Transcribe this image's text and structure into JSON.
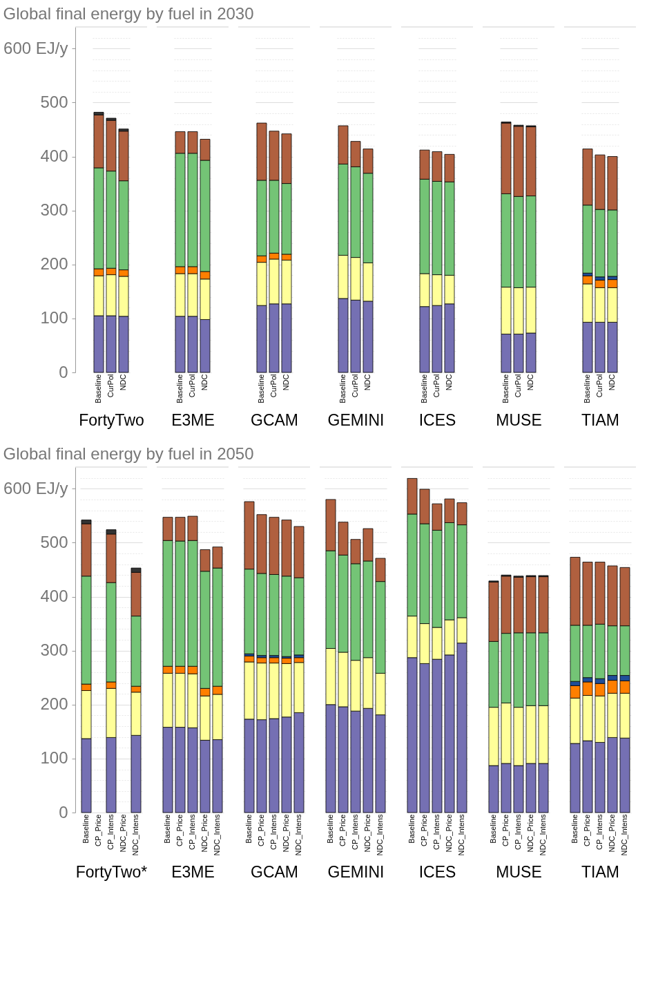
{
  "chart_data": [
    {
      "type": "bar",
      "stacked": true,
      "grid": true,
      "title": "Global final energy by fuel in 2030",
      "xlabel": "FortyTwo",
      "categories": [
        "Baseline",
        "CurPol",
        "NDC"
      ],
      "ylim": [
        0,
        640
      ],
      "yticks": [
        0,
        {
          "value": 20,
          "label": null
        },
        {
          "value": 40,
          "label": null
        },
        {
          "value": 60,
          "label": null
        },
        {
          "value": 80,
          "label": null
        },
        100,
        {
          "value": 120,
          "label": null
        },
        {
          "value": 140,
          "label": null
        },
        {
          "value": 160,
          "label": null
        },
        {
          "value": 180,
          "label": null
        },
        200,
        {
          "value": 220,
          "label": null
        },
        {
          "value": 240,
          "label": null
        },
        {
          "value": 260,
          "label": null
        },
        {
          "value": 280,
          "label": null
        },
        300,
        {
          "value": 320,
          "label": null
        },
        {
          "value": 340,
          "label": null
        },
        {
          "value": 360,
          "label": null
        },
        {
          "value": 380,
          "label": null
        },
        400,
        {
          "value": 420,
          "label": null
        },
        {
          "value": 440,
          "label": null
        },
        {
          "value": 460,
          "label": null
        },
        {
          "value": 480,
          "label": null
        },
        500,
        {
          "value": 520,
          "label": null
        },
        {
          "value": 540,
          "label": null
        },
        {
          "value": 560,
          "label": null
        },
        {
          "value": 580,
          "label": null
        },
        {
          "value": 600,
          "label": "600 EJ/y"
        },
        {
          "value": 620,
          "label": null
        }
      ],
      "series": [
        {
          "color": "#7570b3",
          "values": [
            105,
            105,
            104
          ]
        },
        {
          "color": "#ffff99",
          "values": [
            74,
            76,
            74
          ]
        },
        {
          "color": "#ff7f00",
          "values": [
            13,
            12,
            12
          ]
        },
        {
          "color": "#1f4e99",
          "values": [
            null,
            null,
            null
          ]
        },
        {
          "color": "#74c476",
          "values": [
            187,
            180,
            165
          ]
        },
        {
          "color": "#b0603f",
          "values": [
            98,
            94,
            92
          ]
        },
        {
          "color": "#333333",
          "values": [
            5,
            4,
            4
          ]
        }
      ]
    },
    {
      "type": "bar",
      "stacked": true,
      "grid": true,
      "tick_labels": "x",
      "xlabel": "E3ME",
      "categories": [
        "Baseline",
        "CurPol",
        "NDC"
      ],
      "ylim": [
        0,
        640
      ],
      "series": [
        {
          "color": "#7570b3",
          "values": [
            104,
            104,
            98
          ]
        },
        {
          "color": "#ffff99",
          "values": [
            79,
            79,
            75
          ]
        },
        {
          "color": "#ff7f00",
          "values": [
            13,
            13,
            14
          ]
        },
        {
          "color": "#1f4e99",
          "values": [
            null,
            null,
            null
          ]
        },
        {
          "color": "#74c476",
          "values": [
            210,
            210,
            206
          ]
        },
        {
          "color": "#b0603f",
          "values": [
            40,
            40,
            39
          ]
        },
        {
          "color": "#333333",
          "values": [
            null,
            null,
            null
          ]
        }
      ]
    },
    {
      "type": "bar",
      "stacked": true,
      "grid": true,
      "tick_labels": "x",
      "xlabel": "GCAM",
      "categories": [
        "Baseline",
        "CurPol",
        "NDC"
      ],
      "ylim": [
        0,
        640
      ],
      "series": [
        {
          "color": "#7570b3",
          "values": [
            124,
            127,
            127
          ]
        },
        {
          "color": "#ffff99",
          "values": [
            80,
            83,
            81
          ]
        },
        {
          "color": "#ff7f00",
          "values": [
            12,
            11,
            11
          ]
        },
        {
          "color": "#1f4e99",
          "values": [
            null,
            null,
            null
          ]
        },
        {
          "color": "#74c476",
          "values": [
            140,
            135,
            131
          ]
        },
        {
          "color": "#b0603f",
          "values": [
            106,
            91,
            92
          ]
        },
        {
          "color": "#333333",
          "values": [
            null,
            null,
            null
          ]
        }
      ]
    },
    {
      "type": "bar",
      "stacked": true,
      "grid": true,
      "tick_labels": "x",
      "xlabel": "GEMINI",
      "categories": [
        "Baseline",
        "CurPol",
        "NDC"
      ],
      "ylim": [
        0,
        640
      ],
      "series": [
        {
          "color": "#7570b3",
          "values": [
            137,
            134,
            132
          ]
        },
        {
          "color": "#ffff99",
          "values": [
            80,
            79,
            71
          ]
        },
        {
          "color": "#ff7f00",
          "values": [
            null,
            null,
            null
          ]
        },
        {
          "color": "#1f4e99",
          "values": [
            null,
            null,
            null
          ]
        },
        {
          "color": "#74c476",
          "values": [
            169,
            168,
            166
          ]
        },
        {
          "color": "#b0603f",
          "values": [
            71,
            47,
            45
          ]
        },
        {
          "color": "#333333",
          "values": [
            null,
            null,
            null
          ]
        }
      ]
    },
    {
      "type": "bar",
      "stacked": true,
      "grid": true,
      "tick_labels": "x",
      "xlabel": "ICES",
      "categories": [
        "Baseline",
        "CurPol",
        "NDC"
      ],
      "ylim": [
        0,
        640
      ],
      "series": [
        {
          "color": "#7570b3",
          "values": [
            122,
            124,
            127
          ]
        },
        {
          "color": "#ffff99",
          "values": [
            61,
            57,
            53
          ]
        },
        {
          "color": "#ff7f00",
          "values": [
            null,
            null,
            null
          ]
        },
        {
          "color": "#1f4e99",
          "values": [
            null,
            null,
            null
          ]
        },
        {
          "color": "#74c476",
          "values": [
            175,
            173,
            173
          ]
        },
        {
          "color": "#b0603f",
          "values": [
            54,
            55,
            51
          ]
        },
        {
          "color": "#333333",
          "values": [
            null,
            null,
            null
          ]
        }
      ]
    },
    {
      "type": "bar",
      "stacked": true,
      "grid": true,
      "tick_labels": "x",
      "xlabel": "MUSE",
      "categories": [
        "Baseline",
        "CurPol",
        "NDC"
      ],
      "ylim": [
        0,
        640
      ],
      "series": [
        {
          "color": "#7570b3",
          "values": [
            71,
            71,
            73
          ]
        },
        {
          "color": "#ffff99",
          "values": [
            87,
            86,
            85
          ]
        },
        {
          "color": "#ff7f00",
          "values": [
            null,
            null,
            null
          ]
        },
        {
          "color": "#1f4e99",
          "values": [
            null,
            null,
            null
          ]
        },
        {
          "color": "#74c476",
          "values": [
            173,
            169,
            169
          ]
        },
        {
          "color": "#b0603f",
          "values": [
            131,
            130,
            128
          ]
        },
        {
          "color": "#333333",
          "values": [
            2,
            2,
            2
          ]
        }
      ]
    },
    {
      "type": "bar",
      "stacked": true,
      "grid": true,
      "tick_labels": "x",
      "xlabel": "TIAM",
      "categories": [
        "Baseline",
        "CurPol",
        "NDC"
      ],
      "ylim": [
        0,
        640
      ],
      "series": [
        {
          "color": "#7570b3",
          "values": [
            93,
            93,
            93
          ]
        },
        {
          "color": "#ffff99",
          "values": [
            71,
            64,
            64
          ]
        },
        {
          "color": "#ff7f00",
          "values": [
            15,
            14,
            15
          ]
        },
        {
          "color": "#1f4e99",
          "values": [
            5,
            6,
            6
          ]
        },
        {
          "color": "#74c476",
          "values": [
            126,
            125,
            123
          ]
        },
        {
          "color": "#b0603f",
          "values": [
            104,
            101,
            99
          ]
        },
        {
          "color": "#333333",
          "values": [
            null,
            null,
            null
          ]
        }
      ]
    },
    {
      "type": "bar",
      "stacked": true,
      "grid": true,
      "title": "Global final energy by fuel in 2050",
      "xlabel": "FortyTwo*",
      "categories": [
        "Baseline",
        "CP_Price",
        "CP_Intens",
        "NDC_Price",
        "NDC_Intens"
      ],
      "ylim": [
        0,
        640
      ],
      "yticks": [
        0,
        {
          "value": 20,
          "label": null
        },
        {
          "value": 40,
          "label": null
        },
        {
          "value": 60,
          "label": null
        },
        {
          "value": 80,
          "label": null
        },
        100,
        {
          "value": 120,
          "label": null
        },
        {
          "value": 140,
          "label": null
        },
        {
          "value": 160,
          "label": null
        },
        {
          "value": 180,
          "label": null
        },
        200,
        {
          "value": 220,
          "label": null
        },
        {
          "value": 240,
          "label": null
        },
        {
          "value": 260,
          "label": null
        },
        {
          "value": 280,
          "label": null
        },
        300,
        {
          "value": 320,
          "label": null
        },
        {
          "value": 340,
          "label": null
        },
        {
          "value": 360,
          "label": null
        },
        {
          "value": 380,
          "label": null
        },
        400,
        {
          "value": 420,
          "label": null
        },
        {
          "value": 440,
          "label": null
        },
        {
          "value": 460,
          "label": null
        },
        {
          "value": 480,
          "label": null
        },
        500,
        {
          "value": 520,
          "label": null
        },
        {
          "value": 540,
          "label": null
        },
        {
          "value": 560,
          "label": null
        },
        {
          "value": 580,
          "label": null
        },
        {
          "value": 600,
          "label": "600 EJ/y"
        },
        {
          "value": 620,
          "label": null
        }
      ],
      "series": [
        {
          "color": "#7570b3",
          "values": [
            137,
            null,
            139,
            null,
            143
          ]
        },
        {
          "color": "#ffff99",
          "values": [
            89,
            null,
            91,
            null,
            80
          ]
        },
        {
          "color": "#ff7f00",
          "values": [
            12,
            null,
            12,
            null,
            11
          ]
        },
        {
          "color": "#1f4e99",
          "values": [
            null,
            null,
            null,
            null,
            null
          ]
        },
        {
          "color": "#74c476",
          "values": [
            200,
            null,
            184,
            null,
            130
          ]
        },
        {
          "color": "#b0603f",
          "values": [
            97,
            null,
            90,
            null,
            81
          ]
        },
        {
          "color": "#333333",
          "values": [
            7,
            null,
            8,
            null,
            8
          ]
        }
      ]
    },
    {
      "type": "bar",
      "stacked": true,
      "grid": true,
      "tick_labels": "x",
      "xlabel": "E3ME",
      "categories": [
        "Baseline",
        "CP_Price",
        "CP_Intens",
        "NDC_Price",
        "NDC_Intens"
      ],
      "ylim": [
        0,
        640
      ],
      "series": [
        {
          "color": "#7570b3",
          "values": [
            158,
            158,
            157,
            134,
            135
          ]
        },
        {
          "color": "#ffff99",
          "values": [
            100,
            100,
            100,
            82,
            84
          ]
        },
        {
          "color": "#ff7f00",
          "values": [
            13,
            13,
            14,
            14,
            15
          ]
        },
        {
          "color": "#1f4e99",
          "values": [
            null,
            null,
            null,
            null,
            null
          ]
        },
        {
          "color": "#74c476",
          "values": [
            233,
            232,
            233,
            217,
            219
          ]
        },
        {
          "color": "#b0603f",
          "values": [
            43,
            44,
            45,
            40,
            39
          ]
        },
        {
          "color": "#333333",
          "values": [
            null,
            null,
            null,
            null,
            null
          ]
        }
      ]
    },
    {
      "type": "bar",
      "stacked": true,
      "grid": true,
      "tick_labels": "x",
      "xlabel": "GCAM",
      "categories": [
        "Baseline",
        "CP_Price",
        "CP_Intens",
        "NDC_Price",
        "NDC_Intens"
      ],
      "ylim": [
        0,
        640
      ],
      "series": [
        {
          "color": "#7570b3",
          "values": [
            173,
            172,
            174,
            177,
            185
          ]
        },
        {
          "color": "#ffff99",
          "values": [
            106,
            105,
            103,
            99,
            93
          ]
        },
        {
          "color": "#ff7f00",
          "values": [
            11,
            10,
            10,
            10,
            9
          ]
        },
        {
          "color": "#1f4e99",
          "values": [
            4,
            4,
            4,
            3,
            5
          ]
        },
        {
          "color": "#74c476",
          "values": [
            157,
            152,
            150,
            149,
            143
          ]
        },
        {
          "color": "#b0603f",
          "values": [
            125,
            109,
            106,
            104,
            95
          ]
        },
        {
          "color": "#333333",
          "values": [
            null,
            null,
            null,
            null,
            null
          ]
        }
      ]
    },
    {
      "type": "bar",
      "stacked": true,
      "grid": true,
      "tick_labels": "x",
      "xlabel": "GEMINI",
      "categories": [
        "Baseline",
        "CP_Price",
        "CP_Intens",
        "NDC_Price",
        "NDC_Intens"
      ],
      "ylim": [
        0,
        640
      ],
      "series": [
        {
          "color": "#7570b3",
          "values": [
            200,
            196,
            188,
            193,
            181
          ]
        },
        {
          "color": "#ffff99",
          "values": [
            104,
            101,
            94,
            94,
            77
          ]
        },
        {
          "color": "#ff7f00",
          "values": [
            null,
            null,
            null,
            null,
            null
          ]
        },
        {
          "color": "#1f4e99",
          "values": [
            null,
            null,
            null,
            null,
            null
          ]
        },
        {
          "color": "#74c476",
          "values": [
            181,
            180,
            179,
            179,
            170
          ]
        },
        {
          "color": "#b0603f",
          "values": [
            95,
            61,
            45,
            60,
            43
          ]
        },
        {
          "color": "#333333",
          "values": [
            null,
            null,
            null,
            null,
            null
          ]
        }
      ]
    },
    {
      "type": "bar",
      "stacked": true,
      "grid": true,
      "tick_labels": "x",
      "xlabel": "ICES",
      "categories": [
        "Baseline",
        "CP_Price",
        "CP_Intens",
        "NDC_Price",
        "NDC_Intens"
      ],
      "ylim": [
        0,
        640
      ],
      "series": [
        {
          "color": "#7570b3",
          "values": [
            287,
            276,
            284,
            292,
            314
          ]
        },
        {
          "color": "#ffff99",
          "values": [
            77,
            74,
            59,
            65,
            47
          ]
        },
        {
          "color": "#ff7f00",
          "values": [
            null,
            null,
            null,
            null,
            null
          ]
        },
        {
          "color": "#1f4e99",
          "values": [
            null,
            null,
            null,
            null,
            null
          ]
        },
        {
          "color": "#74c476",
          "values": [
            189,
            185,
            180,
            180,
            172
          ]
        },
        {
          "color": "#b0603f",
          "values": [
            66,
            64,
            49,
            44,
            41
          ]
        },
        {
          "color": "#333333",
          "values": [
            null,
            null,
            null,
            null,
            null
          ]
        }
      ]
    },
    {
      "type": "bar",
      "stacked": true,
      "grid": true,
      "tick_labels": "x",
      "xlabel": "MUSE",
      "categories": [
        "Baseline",
        "CP_Price",
        "CP_Intens",
        "NDC_Price",
        "NDC_Intens"
      ],
      "ylim": [
        0,
        640
      ],
      "series": [
        {
          "color": "#7570b3",
          "values": [
            87,
            91,
            87,
            91,
            91
          ]
        },
        {
          "color": "#ffff99",
          "values": [
            108,
            112,
            108,
            107,
            107
          ]
        },
        {
          "color": "#ff7f00",
          "values": [
            null,
            null,
            null,
            null,
            null
          ]
        },
        {
          "color": "#1f4e99",
          "values": [
            null,
            null,
            null,
            null,
            null
          ]
        },
        {
          "color": "#74c476",
          "values": [
            122,
            129,
            138,
            135,
            135
          ]
        },
        {
          "color": "#b0603f",
          "values": [
            110,
            106,
            103,
            104,
            104
          ]
        },
        {
          "color": "#333333",
          "values": [
            2,
            2,
            2,
            2,
            2
          ]
        }
      ]
    },
    {
      "type": "bar",
      "stacked": true,
      "grid": true,
      "tick_labels": "x",
      "xlabel": "TIAM",
      "categories": [
        "Baseline",
        "CP_Price",
        "CP_Intens",
        "NDC_Price",
        "NDC_Intens"
      ],
      "ylim": [
        0,
        640
      ],
      "series": [
        {
          "color": "#7570b3",
          "values": [
            128,
            133,
            130,
            139,
            138
          ]
        },
        {
          "color": "#ffff99",
          "values": [
            84,
            84,
            86,
            82,
            83
          ]
        },
        {
          "color": "#ff7f00",
          "values": [
            23,
            25,
            23,
            24,
            23
          ]
        },
        {
          "color": "#1f4e99",
          "values": [
            8,
            8,
            9,
            9,
            10
          ]
        },
        {
          "color": "#74c476",
          "values": [
            104,
            97,
            101,
            92,
            92
          ]
        },
        {
          "color": "#b0603f",
          "values": [
            126,
            117,
            115,
            111,
            108
          ]
        },
        {
          "color": "#333333",
          "values": [
            null,
            null,
            null,
            null,
            null
          ]
        }
      ]
    }
  ]
}
